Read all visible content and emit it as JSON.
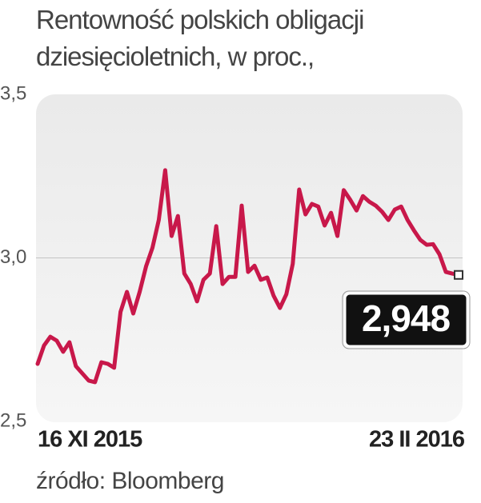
{
  "chart_data": {
    "type": "line",
    "title": "Rentowność polskich obligacji dziesięcioletnich, w proc.,",
    "source": "źródło: Bloomberg",
    "categories": [
      "16 XI 2015",
      null,
      null,
      null,
      null,
      null,
      null,
      null,
      null,
      null,
      null,
      null,
      null,
      null,
      null,
      null,
      null,
      null,
      null,
      null,
      null,
      null,
      null,
      null,
      null,
      null,
      null,
      null,
      null,
      null,
      null,
      null,
      null,
      null,
      null,
      null,
      null,
      null,
      null,
      null,
      null,
      null,
      null,
      null,
      null,
      null,
      null,
      null,
      null,
      null,
      null,
      null,
      null,
      null,
      null,
      null,
      null,
      null,
      null,
      null,
      null,
      null,
      null,
      null,
      null,
      null,
      "23 II 2016"
    ],
    "series": [
      {
        "name": null,
        "color": "#c8184a",
        "values": [
          2.676,
          2.732,
          2.759,
          2.747,
          2.713,
          2.742,
          2.669,
          2.647,
          2.625,
          2.62,
          2.681,
          2.676,
          2.664,
          2.835,
          2.896,
          2.83,
          2.896,
          2.974,
          3.031,
          3.116,
          3.268,
          3.067,
          3.128,
          2.952,
          2.92,
          2.867,
          2.933,
          2.952,
          3.097,
          2.92,
          2.942,
          2.942,
          3.16,
          2.957,
          2.976,
          2.933,
          2.94,
          2.884,
          2.847,
          2.889,
          2.982,
          3.209,
          3.133,
          3.165,
          3.157,
          3.099,
          3.138,
          3.067,
          3.207,
          3.178,
          3.145,
          3.189,
          3.172,
          3.16,
          3.141,
          3.116,
          3.148,
          3.157,
          3.116,
          3.084,
          3.055,
          3.04,
          3.042,
          3.011,
          2.957,
          2.952,
          2.948
        ]
      }
    ],
    "value_labels": [
      null,
      null,
      null,
      null,
      null,
      null,
      null,
      null,
      null,
      null,
      null,
      null,
      null,
      null,
      null,
      null,
      null,
      null,
      null,
      null,
      null,
      null,
      null,
      null,
      null,
      null,
      null,
      null,
      null,
      null,
      null,
      null,
      null,
      null,
      null,
      null,
      null,
      null,
      null,
      null,
      null,
      null,
      null,
      null,
      null,
      null,
      null,
      null,
      null,
      null,
      null,
      null,
      null,
      null,
      null,
      null,
      null,
      null,
      null,
      null,
      null,
      null,
      null,
      null,
      null,
      null,
      "2,948"
    ],
    "ylim": [
      2.5,
      3.5
    ],
    "yticks": [
      {
        "value": 2.5,
        "label": "2,5"
      },
      {
        "value": 3.0,
        "label": "3,0"
      },
      {
        "value": 3.5,
        "label": "3,5"
      }
    ],
    "grid": true
  }
}
